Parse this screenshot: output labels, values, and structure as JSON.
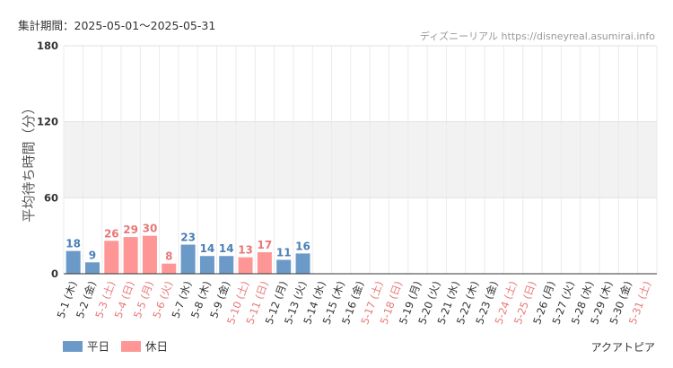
{
  "period_label": "集計期間：2025-05-01〜2025-05-31",
  "credit": "ディズニーリアル https://disneyreal.asumirai.info",
  "park_name": "アクアトピア",
  "colors": {
    "weekday": "#6b9ac8",
    "holiday": "#ff9696",
    "weekday_text": "#4a7fb5",
    "holiday_text": "#e87878",
    "band": "#f2f2f2"
  },
  "chart_data": {
    "type": "bar",
    "ylabel": "平均待ち時間（分）",
    "ylim": [
      0,
      180
    ],
    "yticks": [
      0,
      60,
      120,
      180
    ],
    "grid": true,
    "legend_position": "bottom-left",
    "legend": [
      {
        "label": "平日",
        "key": "weekday"
      },
      {
        "label": "休日",
        "key": "holiday"
      }
    ],
    "categories": [
      "5-1 (木)",
      "5-2 (金)",
      "5-3 (土)",
      "5-4 (日)",
      "5-5 (月)",
      "5-6 (火)",
      "5-7 (水)",
      "5-8 (木)",
      "5-9 (金)",
      "5-10 (土)",
      "5-11 (日)",
      "5-12 (月)",
      "5-13 (火)",
      "5-14 (水)",
      "5-15 (木)",
      "5-16 (金)",
      "5-17 (土)",
      "5-18 (日)",
      "5-19 (月)",
      "5-20 (火)",
      "5-21 (水)",
      "5-22 (木)",
      "5-23 (金)",
      "5-24 (土)",
      "5-25 (日)",
      "5-26 (月)",
      "5-27 (火)",
      "5-28 (水)",
      "5-29 (木)",
      "5-30 (金)",
      "5-31 (土)"
    ],
    "day_type": [
      "weekday",
      "weekday",
      "holiday",
      "holiday",
      "holiday",
      "holiday",
      "weekday",
      "weekday",
      "weekday",
      "holiday",
      "holiday",
      "weekday",
      "weekday",
      "weekday",
      "weekday",
      "weekday",
      "holiday",
      "holiday",
      "weekday",
      "weekday",
      "weekday",
      "weekday",
      "weekday",
      "holiday",
      "holiday",
      "weekday",
      "weekday",
      "weekday",
      "weekday",
      "weekday",
      "holiday"
    ],
    "values": [
      18,
      9,
      26,
      29,
      30,
      8,
      23,
      14,
      14,
      13,
      17,
      11,
      16,
      null,
      null,
      null,
      null,
      null,
      null,
      null,
      null,
      null,
      null,
      null,
      null,
      null,
      null,
      null,
      null,
      null,
      null
    ]
  }
}
